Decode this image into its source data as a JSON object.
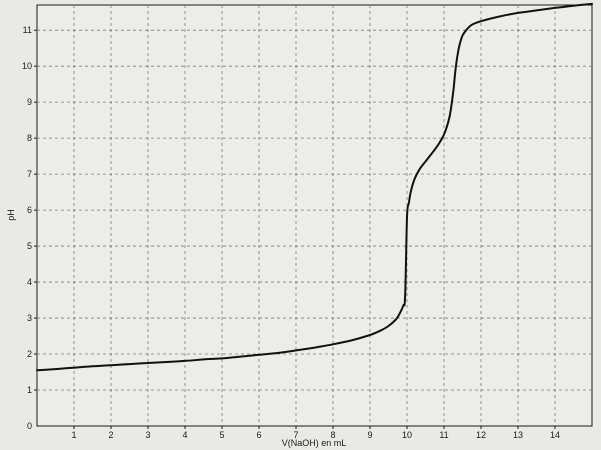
{
  "chart_data": {
    "type": "line",
    "title": "",
    "xlabel": "V(NaOH) en mL",
    "ylabel": "pH",
    "xlim": [
      0,
      15
    ],
    "ylim": [
      0,
      11.7
    ],
    "x_ticks": [
      1,
      2,
      3,
      4,
      5,
      6,
      7,
      8,
      9,
      10,
      11,
      12,
      13,
      14
    ],
    "y_ticks": [
      1,
      2,
      3,
      4,
      5,
      6,
      7,
      8,
      9,
      10,
      11
    ],
    "grid": true,
    "grid_style": "dashed",
    "line_color": "#111111",
    "series": [
      {
        "x": [
          0,
          0.5,
          1,
          1.5,
          2,
          2.5,
          3,
          3.5,
          4,
          4.5,
          5,
          5.5,
          6,
          6.5,
          7,
          7.5,
          8,
          8.5,
          9,
          9.3,
          9.5,
          9.7,
          9.8,
          9.9,
          9.95,
          10.0,
          10.05,
          10.1,
          10.2,
          10.35,
          10.5,
          10.8,
          11.0,
          11.15,
          11.25,
          11.3,
          11.35,
          11.4,
          11.45,
          11.5,
          11.6,
          11.75,
          12.0,
          12.5,
          13.0,
          13.5,
          14.0,
          14.5,
          15.0
        ],
        "y": [
          1.55,
          1.58,
          1.62,
          1.66,
          1.69,
          1.72,
          1.75,
          1.78,
          1.81,
          1.85,
          1.88,
          1.93,
          1.98,
          2.03,
          2.1,
          2.18,
          2.27,
          2.38,
          2.53,
          2.66,
          2.78,
          2.96,
          3.12,
          3.35,
          3.6,
          5.8,
          6.2,
          6.5,
          6.85,
          7.15,
          7.35,
          7.75,
          8.1,
          8.6,
          9.3,
          9.8,
          10.2,
          10.5,
          10.7,
          10.85,
          11.0,
          11.15,
          11.25,
          11.38,
          11.48,
          11.55,
          11.62,
          11.68,
          11.73
        ]
      }
    ]
  }
}
